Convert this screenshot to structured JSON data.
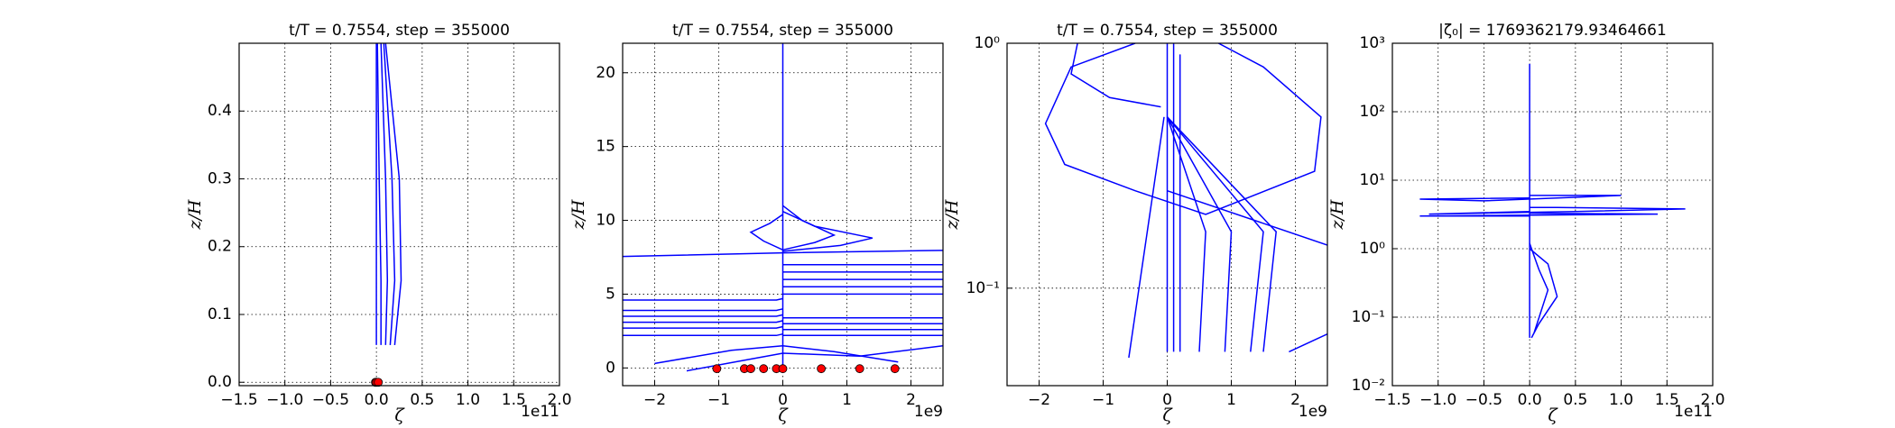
{
  "chart_data": [
    {
      "type": "line",
      "title": "t/T = 0.7554, step = 355000",
      "xlabel": "ζ",
      "ylabel": "z/H",
      "x_offset": "1e11",
      "xlim": [
        -1.5,
        2.0
      ],
      "ylim": [
        -0.005,
        0.5
      ],
      "yscale": "linear",
      "grid": true,
      "xticks": [
        {
          "value": -1.5,
          "label": "−1.5"
        },
        {
          "value": -1.0,
          "label": "−1.0"
        },
        {
          "value": -0.5,
          "label": "−0.5"
        },
        {
          "value": 0,
          "label": "0.0"
        },
        0.5,
        {
          "value": 1.0,
          "label": "1.0"
        },
        1.5,
        {
          "value": 2.0,
          "label": "2.0"
        }
      ],
      "yticks": [
        {
          "value": 0,
          "label": "0.0"
        },
        0.1,
        0.2,
        0.3,
        0.4
      ],
      "series": [
        {
          "color": "#0000ff",
          "x": [
            0,
            0,
            0,
            0
          ],
          "y": [
            0.055,
            0.15,
            0.3,
            0.5
          ]
        },
        {
          "color": "#0000ff",
          "x": [
            0.05,
            0.05,
            0.03,
            0.01
          ],
          "y": [
            0.055,
            0.15,
            0.3,
            0.5
          ]
        },
        {
          "color": "#0000ff",
          "x": [
            0.1,
            0.12,
            0.1,
            0.05
          ],
          "y": [
            0.055,
            0.15,
            0.3,
            0.5
          ]
        },
        {
          "color": "#0000ff",
          "x": [
            0.15,
            0.2,
            0.17,
            0.08
          ],
          "y": [
            0.055,
            0.15,
            0.3,
            0.5
          ]
        },
        {
          "color": "#0000ff",
          "x": [
            0.2,
            0.27,
            0.25,
            0.1
          ],
          "y": [
            0.055,
            0.15,
            0.3,
            0.5
          ]
        }
      ],
      "points": {
        "color": "#ff0000",
        "x": [
          -0.01,
          0,
          0.02
        ],
        "y": [
          0,
          0,
          0
        ]
      }
    },
    {
      "type": "line",
      "title": "t/T = 0.7554, step = 355000",
      "xlabel": "ζ",
      "ylabel": "z/H",
      "x_offset": "1e9",
      "xlim": [
        -2.5,
        2.5
      ],
      "ylim": [
        -1.2,
        22
      ],
      "yscale": "linear",
      "grid": true,
      "xticks": [
        {
          "value": -2,
          "label": "−2"
        },
        {
          "value": -1,
          "label": "−1"
        },
        0,
        1,
        2
      ],
      "yticks": [
        0,
        5,
        10,
        15,
        20
      ],
      "series": [
        {
          "color": "#0000ff",
          "x": [
            0,
            0
          ],
          "y": [
            0,
            22
          ]
        },
        {
          "color": "#0000ff",
          "x": [
            0,
            0.5,
            0.8,
            0.3,
            0
          ],
          "y": [
            8,
            8.5,
            9,
            10,
            11
          ]
        },
        {
          "color": "#0000ff",
          "x": [
            0,
            0.9,
            1.4,
            0.5,
            0
          ],
          "y": [
            7.9,
            8.3,
            8.8,
            9.6,
            10.6
          ]
        },
        {
          "color": "#0000ff",
          "x": [
            0,
            -0.3,
            -0.5,
            -0.2,
            0
          ],
          "y": [
            8,
            8.6,
            9.2,
            9.8,
            10.4
          ]
        },
        {
          "color": "#0000ff",
          "x": [
            -3,
            -0.1,
            0
          ],
          "y": [
            2.2,
            2.2,
            2.3
          ]
        },
        {
          "color": "#0000ff",
          "x": [
            -3,
            -0.1,
            0
          ],
          "y": [
            2.7,
            2.7,
            2.8
          ]
        },
        {
          "color": "#0000ff",
          "x": [
            -3,
            -0.1,
            0
          ],
          "y": [
            3.1,
            3.1,
            3.2
          ]
        },
        {
          "color": "#0000ff",
          "x": [
            -3,
            -0.1,
            0
          ],
          "y": [
            3.5,
            3.5,
            3.6
          ]
        },
        {
          "color": "#0000ff",
          "x": [
            -3,
            -0.1,
            0
          ],
          "y": [
            3.9,
            3.9,
            4
          ]
        },
        {
          "color": "#0000ff",
          "x": [
            -3,
            -0.1,
            0
          ],
          "y": [
            4.6,
            4.6,
            4.7
          ]
        },
        {
          "color": "#0000ff",
          "x": [
            0,
            3
          ],
          "y": [
            2.2,
            2.2
          ]
        },
        {
          "color": "#0000ff",
          "x": [
            0,
            3
          ],
          "y": [
            2.6,
            2.6
          ]
        },
        {
          "color": "#0000ff",
          "x": [
            0,
            3
          ],
          "y": [
            3,
            3
          ]
        },
        {
          "color": "#0000ff",
          "x": [
            0,
            3
          ],
          "y": [
            3.4,
            3.4
          ]
        },
        {
          "color": "#0000ff",
          "x": [
            0,
            3
          ],
          "y": [
            5,
            5
          ]
        },
        {
          "color": "#0000ff",
          "x": [
            0,
            3
          ],
          "y": [
            5.5,
            5.5
          ]
        },
        {
          "color": "#0000ff",
          "x": [
            0,
            3
          ],
          "y": [
            6,
            6
          ]
        },
        {
          "color": "#0000ff",
          "x": [
            0,
            3
          ],
          "y": [
            6.5,
            6.5
          ]
        },
        {
          "color": "#0000ff",
          "x": [
            0,
            3
          ],
          "y": [
            7,
            7
          ]
        },
        {
          "color": "#0000ff",
          "x": [
            -3,
            0,
            3
          ],
          "y": [
            7.5,
            7.8,
            8
          ]
        },
        {
          "color": "#0000ff",
          "x": [
            -1.5,
            -0.5,
            0,
            1.2,
            2.5
          ],
          "y": [
            -0.2,
            0.6,
            1,
            0.8,
            1.5
          ]
        },
        {
          "color": "#0000ff",
          "x": [
            -2,
            -0.8,
            0,
            0.8,
            1.8
          ],
          "y": [
            0.3,
            1.2,
            1.5,
            1.1,
            0.4
          ]
        }
      ],
      "points": {
        "color": "#ff0000",
        "x": [
          -1.03,
          -0.6,
          -0.5,
          -0.3,
          -0.1,
          0,
          0.6,
          1.2,
          1.75
        ],
        "y": [
          -0.05,
          -0.05,
          -0.05,
          -0.05,
          -0.05,
          -0.05,
          -0.05,
          -0.05,
          -0.05
        ]
      }
    },
    {
      "type": "line",
      "title": "t/T = 0.7554, step = 355000",
      "xlabel": "ζ",
      "ylabel": "z/H",
      "x_offset": "1e9",
      "xlim": [
        -2.5,
        2.5
      ],
      "ylim": [
        0.04,
        1
      ],
      "yscale": "log",
      "grid": true,
      "xticks": [
        {
          "value": -2,
          "label": "−2"
        },
        {
          "value": -1,
          "label": "−1"
        },
        0,
        1,
        2
      ],
      "yticks": [
        {
          "value": 0.1,
          "label": "10⁻¹"
        },
        {
          "value": 1,
          "label": "10⁰"
        }
      ],
      "series": [
        {
          "color": "#0000ff",
          "x": [
            0,
            0
          ],
          "y": [
            0.055,
            1
          ]
        },
        {
          "color": "#0000ff",
          "x": [
            0.1,
            0.1
          ],
          "y": [
            0.055,
            1
          ]
        },
        {
          "color": "#0000ff",
          "x": [
            0.2,
            0.2
          ],
          "y": [
            0.055,
            0.9
          ]
        },
        {
          "color": "#0000ff",
          "x": [
            0,
            0.6,
            0.5
          ],
          "y": [
            0.5,
            0.17,
            0.055
          ]
        },
        {
          "color": "#0000ff",
          "x": [
            0,
            1.0,
            0.9
          ],
          "y": [
            0.5,
            0.17,
            0.055
          ]
        },
        {
          "color": "#0000ff",
          "x": [
            0,
            1.5,
            1.3
          ],
          "y": [
            0.5,
            0.17,
            0.055
          ]
        },
        {
          "color": "#0000ff",
          "x": [
            0,
            1.7,
            1.5
          ],
          "y": [
            0.5,
            0.17,
            0.055
          ]
        },
        {
          "color": "#0000ff",
          "x": [
            -0.5,
            -1.5,
            -1.9,
            -1.6,
            -0.5,
            0.6,
            2.3,
            2.4,
            1.5,
            0.8
          ],
          "y": [
            1,
            0.8,
            0.47,
            0.32,
            0.25,
            0.2,
            0.3,
            0.5,
            0.8,
            1
          ]
        },
        {
          "color": "#0000ff",
          "x": [
            -1.4,
            -1.5,
            -0.9,
            -0.1
          ],
          "y": [
            1,
            0.75,
            0.6,
            0.55
          ]
        },
        {
          "color": "#0000ff",
          "x": [
            -0.6,
            -0.05
          ],
          "y": [
            0.052,
            0.5
          ]
        },
        {
          "color": "#0000ff",
          "x": [
            0,
            2.5
          ],
          "y": [
            0.25,
            0.15
          ]
        },
        {
          "color": "#0000ff",
          "x": [
            1.9,
            2.5
          ],
          "y": [
            0.055,
            0.065
          ]
        }
      ]
    },
    {
      "type": "line",
      "title": "|ζ₀| = 1769362179.93464661",
      "xlabel": "ζ",
      "ylabel": "z/H",
      "x_offset": "1e11",
      "xlim": [
        -1.5,
        2.0
      ],
      "ylim": [
        0.01,
        1000
      ],
      "yscale": "log",
      "grid": true,
      "xticks": [
        {
          "value": -1.5,
          "label": "−1.5"
        },
        {
          "value": -1.0,
          "label": "−1.0"
        },
        {
          "value": -0.5,
          "label": "−0.5"
        },
        {
          "value": 0,
          "label": "0.0"
        },
        0.5,
        {
          "value": 1.0,
          "label": "1.0"
        },
        1.5,
        {
          "value": 2.0,
          "label": "2.0"
        }
      ],
      "yticks": [
        {
          "value": 0.01,
          "label": "10⁻²"
        },
        {
          "value": 0.1,
          "label": "10⁻¹"
        },
        {
          "value": 1,
          "label": "10⁰"
        },
        {
          "value": 10,
          "label": "10¹"
        },
        {
          "value": 100,
          "label": "10²"
        },
        {
          "value": 1000,
          "label": "10³"
        }
      ],
      "series": [
        {
          "color": "#0000ff",
          "x": [
            0,
            0
          ],
          "y": [
            0.05,
            500
          ]
        },
        {
          "color": "#0000ff",
          "x": [
            0,
            -1.2,
            -0.5,
            0.3,
            1.0,
            0
          ],
          "y": [
            5.5,
            5.3,
            5,
            5.5,
            6,
            6
          ]
        },
        {
          "color": "#0000ff",
          "x": [
            0,
            -1.1,
            0.5,
            1.7,
            0.3,
            0
          ],
          "y": [
            3.5,
            3.2,
            3.5,
            3.8,
            4,
            4
          ]
        },
        {
          "color": "#0000ff",
          "x": [
            0,
            -1.2,
            1.4,
            0
          ],
          "y": [
            3,
            3,
            3.2,
            3.3
          ]
        },
        {
          "color": "#0000ff",
          "x": [
            0,
            0.2,
            0.3,
            0.1,
            0.02
          ],
          "y": [
            1,
            0.6,
            0.2,
            0.08,
            0.05
          ]
        },
        {
          "color": "#0000ff",
          "x": [
            0,
            0.1,
            0.2,
            0.05
          ],
          "y": [
            1.2,
            0.5,
            0.25,
            0.06
          ]
        }
      ]
    }
  ]
}
